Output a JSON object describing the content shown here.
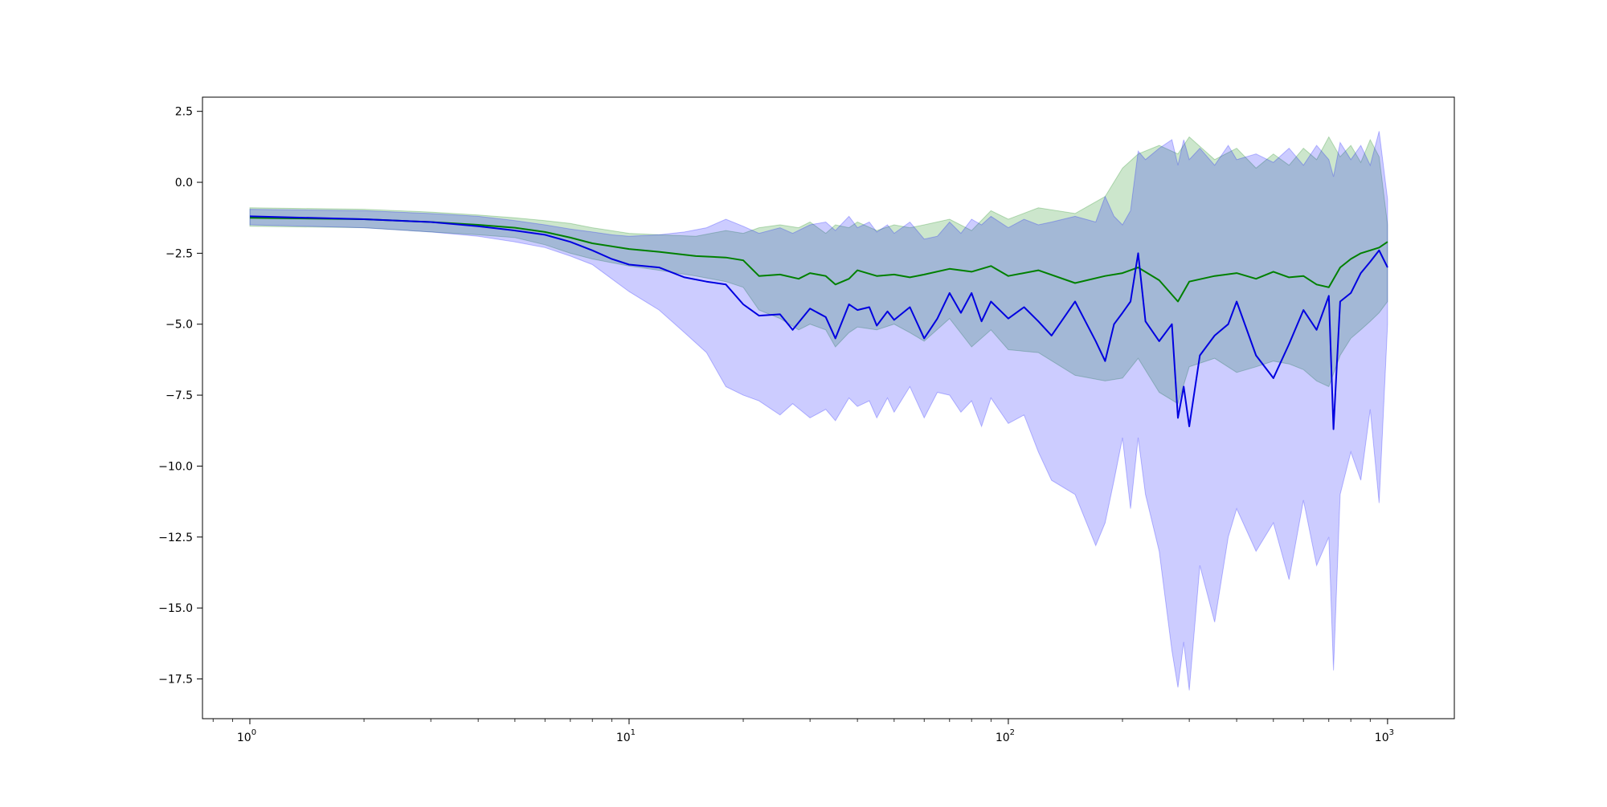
{
  "chart_data": {
    "type": "line",
    "title": "",
    "xlabel": "",
    "ylabel": "",
    "x_scale": "log",
    "xlim": [
      0.75,
      1500
    ],
    "ylim": [
      -18.9,
      3.0
    ],
    "grid": false,
    "legend": "none",
    "x_ticks": [
      {
        "value": 1,
        "base": "10",
        "exp": "0"
      },
      {
        "value": 10,
        "base": "10",
        "exp": "1"
      },
      {
        "value": 100,
        "base": "10",
        "exp": "2"
      },
      {
        "value": 1000,
        "base": "10",
        "exp": "3"
      }
    ],
    "y_ticks": [
      {
        "value": 2.5,
        "label": "2.5"
      },
      {
        "value": 0.0,
        "label": "0.0"
      },
      {
        "value": -2.5,
        "label": "−2.5"
      },
      {
        "value": -5.0,
        "label": "−5.0"
      },
      {
        "value": -7.5,
        "label": "−7.5"
      },
      {
        "value": -10.0,
        "label": "−10.0"
      },
      {
        "value": -12.5,
        "label": "−12.5"
      },
      {
        "value": -15.0,
        "label": "−15.0"
      },
      {
        "value": -17.5,
        "label": "−17.5"
      }
    ],
    "series": [
      {
        "color": "#008000",
        "band_color": "#008000",
        "x": [
          1,
          2,
          3,
          4,
          5,
          6,
          7,
          8,
          10,
          12,
          15,
          18,
          20,
          22,
          25,
          28,
          30,
          33,
          35,
          38,
          40,
          45,
          50,
          55,
          60,
          70,
          80,
          90,
          100,
          120,
          150,
          180,
          200,
          220,
          250,
          280,
          300,
          350,
          400,
          450,
          500,
          550,
          600,
          650,
          700,
          750,
          800,
          850,
          900,
          950,
          1000
        ],
        "y": [
          -1.25,
          -1.3,
          -1.4,
          -1.5,
          -1.6,
          -1.75,
          -1.95,
          -2.15,
          -2.35,
          -2.45,
          -2.6,
          -2.65,
          -2.75,
          -3.3,
          -3.25,
          -3.4,
          -3.2,
          -3.3,
          -3.6,
          -3.4,
          -3.1,
          -3.3,
          -3.25,
          -3.35,
          -3.25,
          -3.05,
          -3.15,
          -2.95,
          -3.3,
          -3.1,
          -3.55,
          -3.3,
          -3.2,
          -3.0,
          -3.45,
          -4.2,
          -3.5,
          -3.3,
          -3.2,
          -3.4,
          -3.15,
          -3.35,
          -3.3,
          -3.6,
          -3.7,
          -3.0,
          -2.7,
          -2.5,
          -2.4,
          -2.3,
          -2.1
        ],
        "upper": [
          -0.9,
          -0.95,
          -1.05,
          -1.15,
          -1.25,
          -1.35,
          -1.45,
          -1.6,
          -1.8,
          -1.85,
          -1.9,
          -1.7,
          -1.8,
          -1.6,
          -1.5,
          -1.6,
          -1.4,
          -1.8,
          -1.5,
          -1.6,
          -1.4,
          -1.7,
          -1.5,
          -1.6,
          -1.5,
          -1.3,
          -1.7,
          -1.0,
          -1.3,
          -0.9,
          -1.1,
          -0.5,
          0.5,
          1.0,
          1.3,
          1.0,
          1.6,
          0.8,
          1.2,
          0.5,
          1.0,
          0.6,
          1.2,
          0.8,
          1.6,
          0.9,
          1.3,
          0.7,
          1.5,
          0.9,
          -1.5
        ],
        "lower": [
          -1.55,
          -1.6,
          -1.75,
          -1.85,
          -1.95,
          -2.2,
          -2.5,
          -2.7,
          -2.95,
          -3.1,
          -3.3,
          -3.5,
          -3.7,
          -4.5,
          -4.8,
          -5.2,
          -5.0,
          -5.2,
          -5.8,
          -5.3,
          -5.1,
          -5.2,
          -5.0,
          -5.3,
          -5.6,
          -4.8,
          -5.8,
          -5.2,
          -5.9,
          -6.0,
          -6.8,
          -7.0,
          -6.9,
          -6.2,
          -7.4,
          -7.8,
          -6.5,
          -6.2,
          -6.7,
          -6.5,
          -6.3,
          -6.4,
          -6.6,
          -7.0,
          -7.2,
          -6.1,
          -5.5,
          -5.2,
          -4.9,
          -4.6,
          -4.2
        ]
      },
      {
        "color": "#0000e0",
        "band_color": "#0000ff",
        "x": [
          1,
          2,
          3,
          4,
          5,
          6,
          7,
          8,
          9,
          10,
          12,
          14,
          16,
          18,
          20,
          22,
          25,
          27,
          30,
          33,
          35,
          38,
          40,
          43,
          45,
          48,
          50,
          55,
          60,
          65,
          70,
          75,
          80,
          85,
          90,
          100,
          110,
          120,
          130,
          150,
          170,
          180,
          190,
          200,
          210,
          220,
          230,
          250,
          270,
          280,
          290,
          300,
          320,
          350,
          380,
          400,
          450,
          500,
          550,
          600,
          650,
          700,
          720,
          750,
          800,
          850,
          900,
          950,
          1000
        ],
        "y": [
          -1.2,
          -1.3,
          -1.4,
          -1.55,
          -1.7,
          -1.85,
          -2.1,
          -2.4,
          -2.7,
          -2.9,
          -3.0,
          -3.35,
          -3.5,
          -3.6,
          -4.3,
          -4.7,
          -4.65,
          -5.2,
          -4.45,
          -4.75,
          -5.5,
          -4.3,
          -4.5,
          -4.4,
          -5.05,
          -4.55,
          -4.85,
          -4.4,
          -5.5,
          -4.8,
          -3.9,
          -4.6,
          -3.9,
          -4.9,
          -4.2,
          -4.8,
          -4.4,
          -4.9,
          -5.4,
          -4.2,
          -5.6,
          -6.3,
          -5.0,
          -4.6,
          -4.2,
          -2.5,
          -4.9,
          -5.6,
          -5.0,
          -8.3,
          -7.2,
          -8.6,
          -6.1,
          -5.4,
          -5.0,
          -4.2,
          -6.1,
          -6.9,
          -5.7,
          -4.5,
          -5.2,
          -4.0,
          -8.7,
          -4.2,
          -3.9,
          -3.2,
          -2.8,
          -2.4,
          -3.0
        ],
        "upper": [
          -0.95,
          -1.0,
          -1.1,
          -1.2,
          -1.35,
          -1.5,
          -1.65,
          -1.75,
          -1.85,
          -1.9,
          -1.85,
          -1.75,
          -1.6,
          -1.3,
          -1.55,
          -1.8,
          -1.6,
          -1.8,
          -1.5,
          -1.4,
          -1.7,
          -1.2,
          -1.6,
          -1.4,
          -1.75,
          -1.5,
          -1.8,
          -1.4,
          -2.0,
          -1.9,
          -1.4,
          -1.8,
          -1.3,
          -1.5,
          -1.2,
          -1.6,
          -1.3,
          -1.5,
          -1.4,
          -1.2,
          -1.4,
          -0.5,
          -1.2,
          -1.5,
          -1.0,
          1.1,
          0.8,
          1.2,
          1.5,
          0.6,
          1.5,
          0.8,
          1.2,
          0.6,
          1.3,
          0.8,
          1.0,
          0.7,
          1.2,
          0.6,
          1.3,
          0.8,
          0.2,
          1.4,
          0.8,
          1.3,
          0.6,
          1.8,
          -0.6
        ],
        "lower": [
          -1.5,
          -1.6,
          -1.75,
          -1.9,
          -2.1,
          -2.3,
          -2.6,
          -2.9,
          -3.4,
          -3.85,
          -4.5,
          -5.3,
          -6.0,
          -7.2,
          -7.5,
          -7.7,
          -8.2,
          -7.8,
          -8.3,
          -8.0,
          -8.4,
          -7.6,
          -7.9,
          -7.7,
          -8.3,
          -7.6,
          -8.1,
          -7.2,
          -8.3,
          -7.4,
          -7.5,
          -8.1,
          -7.7,
          -8.6,
          -7.6,
          -8.5,
          -8.2,
          -9.5,
          -10.5,
          -11.0,
          -12.8,
          -12.0,
          -10.5,
          -9.0,
          -11.5,
          -9.0,
          -11.0,
          -13.0,
          -16.5,
          -17.8,
          -16.2,
          -17.9,
          -13.5,
          -15.5,
          -12.5,
          -11.5,
          -13.0,
          -12.0,
          -14.0,
          -11.2,
          -13.5,
          -12.5,
          -17.2,
          -11.0,
          -9.5,
          -10.5,
          -8.0,
          -11.3,
          -5.0
        ]
      }
    ]
  }
}
